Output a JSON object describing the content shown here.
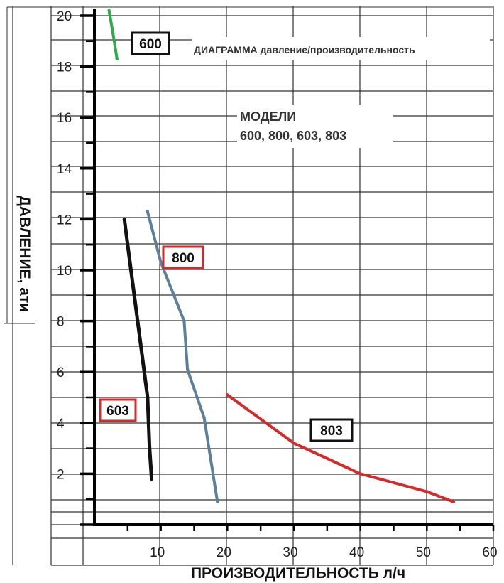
{
  "chart_data": {
    "type": "line",
    "title": "ДИАГРАММА давление/производительность",
    "annotation_lines": [
      "МОДЕЛИ",
      "600, 800, 603, 803"
    ],
    "xlabel": "ПРОИЗВОДИТЕЛЬНОСТЬ л/ч",
    "ylabel": "ДАВЛЕНИЕ, ати",
    "xlim": [
      0,
      60
    ],
    "ylim": [
      0,
      20
    ],
    "x_ticks": [
      "10",
      "20",
      "30",
      "40",
      "50",
      "60"
    ],
    "y_ticks": [
      "2",
      "4",
      "6",
      "8",
      "10",
      "12",
      "14",
      "16",
      "18",
      "20"
    ],
    "grid": true,
    "series": [
      {
        "name": "600",
        "color": "#2eaa4a",
        "label_border": "#111111",
        "points": [
          [
            2.2,
            20.2
          ],
          [
            2.8,
            19.3
          ],
          [
            3.4,
            18.3
          ]
        ]
      },
      {
        "name": "800",
        "color": "#5e7f9c",
        "label_border": "#d42a2a",
        "points": [
          [
            8,
            12.3
          ],
          [
            10,
            10.3
          ],
          [
            13.5,
            8.0
          ],
          [
            14,
            6.1
          ],
          [
            16.5,
            4.2
          ],
          [
            18.5,
            0.9
          ]
        ]
      },
      {
        "name": "603",
        "color": "#111111",
        "label_border": "#d42a2a",
        "points": [
          [
            4.5,
            12.0
          ],
          [
            5,
            11.0
          ],
          [
            6,
            9.0
          ],
          [
            7,
            7.0
          ],
          [
            8,
            5.0
          ],
          [
            8.3,
            3.0
          ],
          [
            8.6,
            1.8
          ]
        ]
      },
      {
        "name": "803",
        "color": "#d42a2a",
        "label_border": "#111111",
        "points": [
          [
            20,
            5.1
          ],
          [
            30,
            3.2
          ],
          [
            40,
            2.0
          ],
          [
            50,
            1.3
          ],
          [
            54,
            0.9
          ]
        ]
      }
    ]
  }
}
